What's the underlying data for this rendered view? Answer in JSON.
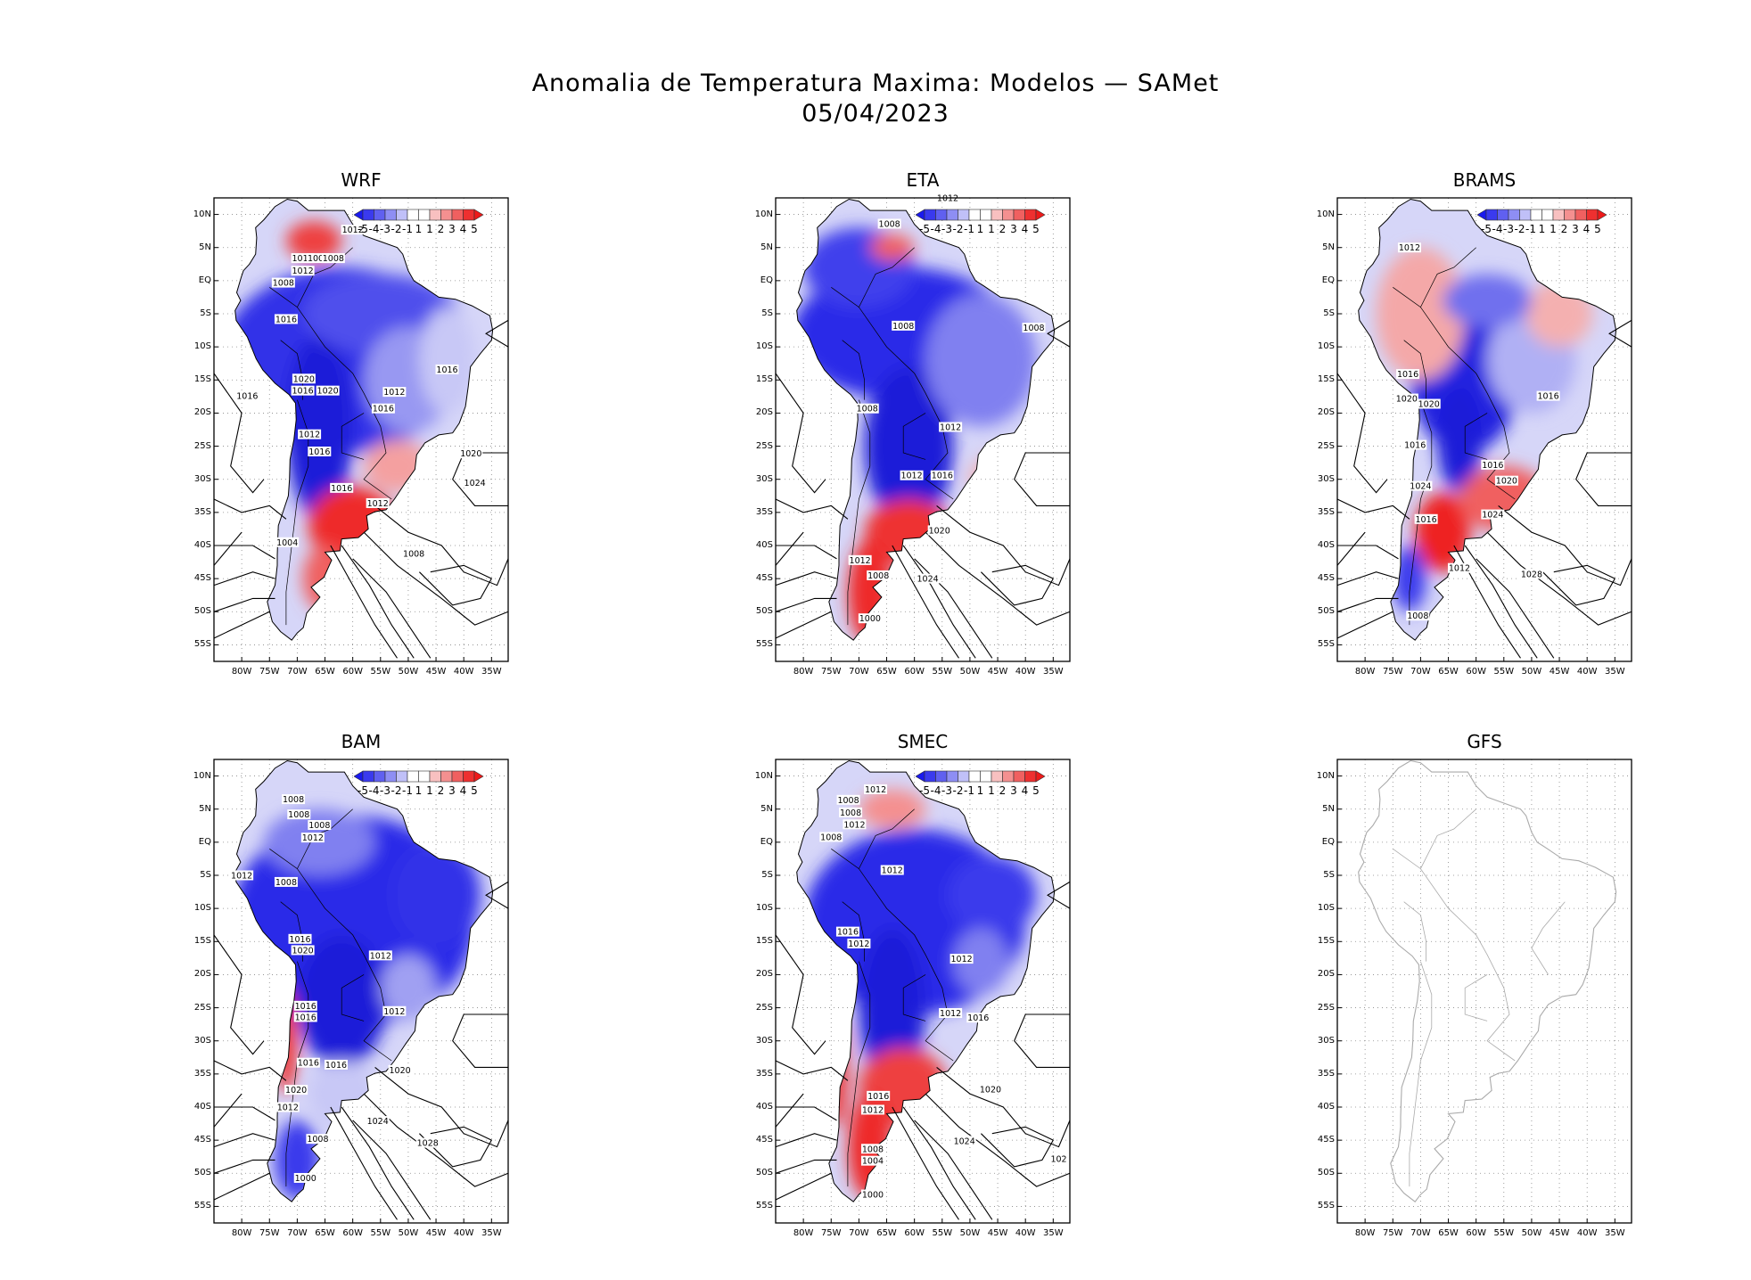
{
  "title": "Anomalia de Temperatura Maxima: Modelos — SAMet",
  "date": "05/04/2023",
  "lat_labels": [
    "10N",
    "5N",
    "EQ",
    "5S",
    "10S",
    "15S",
    "20S",
    "25S",
    "30S",
    "35S",
    "40S",
    "45S",
    "50S",
    "55S"
  ],
  "lon_labels": [
    "80W",
    "75W",
    "70W",
    "65W",
    "60W",
    "55W",
    "50W",
    "45W",
    "40W",
    "35W"
  ],
  "colorbar_labels": [
    "-5",
    "-4",
    "-3",
    "-2",
    "-1",
    "1",
    "1",
    "2",
    "3",
    "4",
    "5"
  ],
  "colorbar_colors": [
    "#1a1aee",
    "#3a3aee",
    "#6060f0",
    "#8e8ef4",
    "#c0c0f8",
    "#ffffff",
    "#ffffff",
    "#f8c0c0",
    "#f49090",
    "#f06060",
    "#ee3030",
    "#ee1a1a"
  ],
  "panels": [
    {
      "name": "WRF",
      "has_data": true,
      "contour_labels": [
        "1012",
        "1012",
        "1008",
        "1008",
        "1012",
        "1008",
        "1016",
        "1020",
        "1016",
        "1020",
        "1016",
        "1012",
        "1016",
        "1016",
        "1012",
        "1016",
        "1016",
        "1020",
        "1024",
        "1012",
        "1008",
        "1004"
      ]
    },
    {
      "name": "ETA",
      "has_data": true,
      "contour_labels": [
        "1012",
        "1008",
        "1008",
        "1008",
        "1008",
        "1012",
        "1012",
        "1016",
        "1020",
        "1024",
        "1012",
        "1008",
        "1000"
      ]
    },
    {
      "name": "BRAMS",
      "has_data": true,
      "contour_labels": [
        "1012",
        "1016",
        "1020",
        "1020",
        "1016",
        "1016",
        "1016",
        "1024",
        "1020",
        "1024",
        "1016",
        "1012",
        "1008",
        "1028"
      ]
    },
    {
      "name": "BAM",
      "has_data": true,
      "contour_labels": [
        "1012",
        "1008",
        "1008",
        "1008",
        "1012",
        "1008",
        "1016",
        "1020",
        "1012",
        "1016",
        "1016",
        "1012",
        "1016",
        "1016",
        "1020",
        "1020",
        "1012",
        "1008",
        "1024",
        "1028",
        "1000"
      ]
    },
    {
      "name": "SMEC",
      "has_data": true,
      "contour_labels": [
        "1012",
        "1008",
        "1008",
        "1012",
        "1008",
        "1012",
        "1016",
        "1012",
        "1012",
        "1016",
        "1012",
        "1020",
        "1016",
        "1012",
        "1008",
        "1004",
        "1024",
        "1000",
        "102"
      ]
    },
    {
      "name": "GFS",
      "has_data": false,
      "contour_labels": []
    }
  ]
}
